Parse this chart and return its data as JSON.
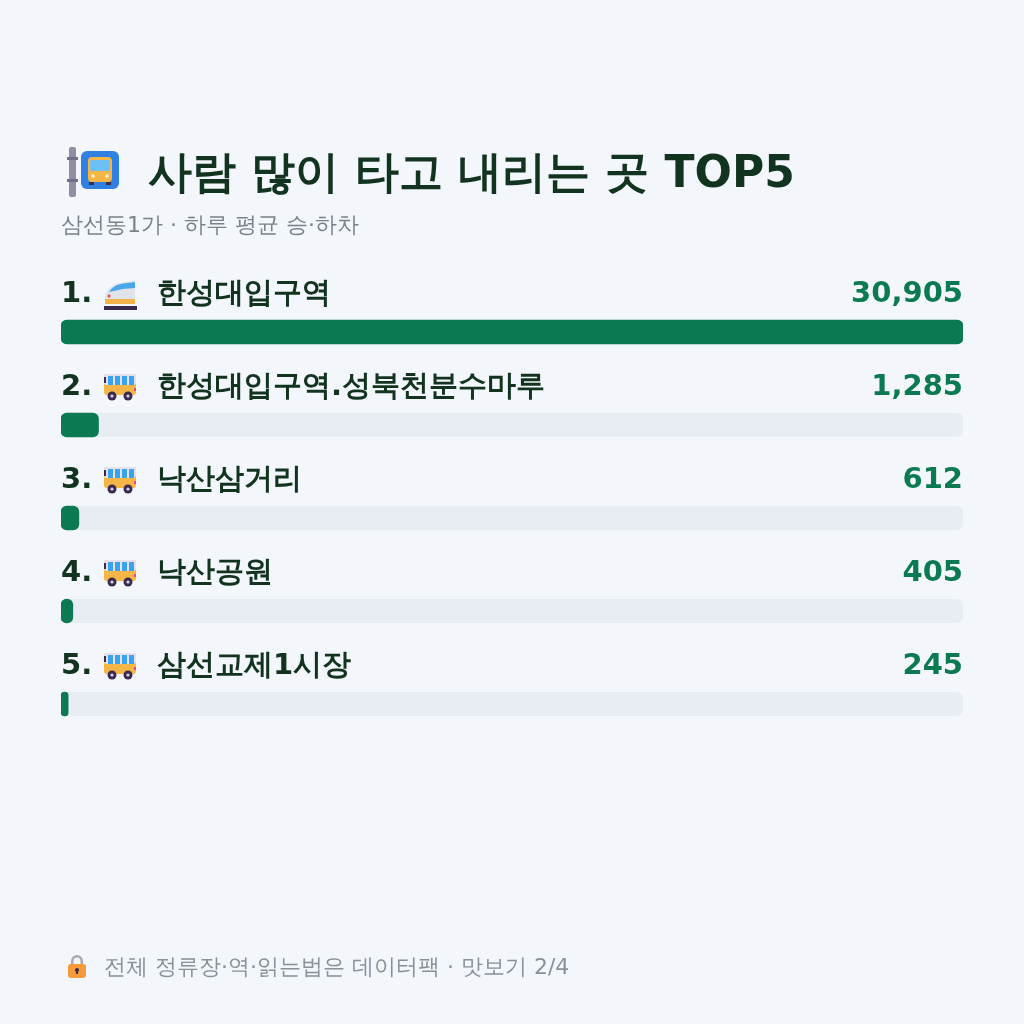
{
  "chart_data": {
    "type": "bar",
    "orientation": "horizontal",
    "title": "사람 많이 타고 내리는 곳 TOP5",
    "subtitle": "삼선동1가 · 하루 평균 승·하차",
    "categories": [
      "1. 한성대입구역",
      "2. 한성대입구역.성북천분수마루",
      "3. 낙산삼거리",
      "4. 낙산공원",
      "5. 삼선교제1시장"
    ],
    "values": [
      30905,
      1285,
      612,
      405,
      245
    ],
    "value_labels": [
      "30,905",
      "1,285",
      "612",
      "405",
      "245"
    ],
    "color": "#0b7a52",
    "xlim": [
      0,
      30905
    ],
    "tick_labels": "y",
    "annotations": [
      "전체 정류장·역·읽는법은 데이터팩 · 맛보기 2/4"
    ]
  }
}
